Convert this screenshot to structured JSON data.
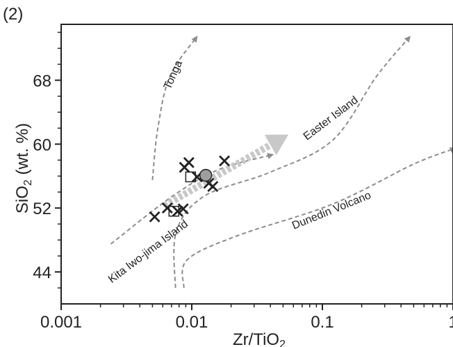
{
  "panel_label": "(2)",
  "chart_data": {
    "type": "scatter",
    "xlabel": "Zr/TiO",
    "xlabel_subscript": "2",
    "ylabel": "SiO",
    "ylabel_subscript": "2",
    "ylabel_unit": " (wt. %)",
    "x_scale": "log",
    "xlim": [
      0.001,
      1
    ],
    "ylim": [
      40,
      75
    ],
    "x_ticks": [
      {
        "value": 0.001,
        "label": "0.001"
      },
      {
        "value": 0.01,
        "label": "0.01"
      },
      {
        "value": 0.1,
        "label": "0.1"
      },
      {
        "value": 1,
        "label": "1"
      }
    ],
    "y_ticks": [
      {
        "value": 44,
        "label": "44"
      },
      {
        "value": 52,
        "label": "52"
      },
      {
        "value": 60,
        "label": "60"
      },
      {
        "value": 68,
        "label": "68"
      }
    ],
    "grid": false,
    "colors": {
      "axis": "#222222",
      "trend": "#8c8c8c",
      "thick_arrow": "#c8c8c8",
      "circle": "#9e9e9e"
    },
    "trends": [
      {
        "label": "Tonga",
        "points": [
          [
            0.005,
            55.5
          ],
          [
            0.0055,
            62
          ],
          [
            0.0068,
            68.5
          ],
          [
            0.011,
            73.5
          ]
        ]
      },
      {
        "label": "Kita Iwo-jima Island",
        "points": [
          [
            0.0024,
            47.5
          ],
          [
            0.007,
            53.4
          ],
          [
            0.016,
            56.8
          ],
          [
            0.042,
            58.7
          ]
        ]
      },
      {
        "label": "Easter Island",
        "points": [
          [
            0.0075,
            42
          ],
          [
            0.0076,
            49
          ],
          [
            0.0125,
            53.5
          ],
          [
            0.04,
            56.5
          ],
          [
            0.12,
            60.5
          ],
          [
            0.26,
            68.5
          ],
          [
            0.47,
            73.5
          ]
        ]
      },
      {
        "label": "Dunedin Volcano",
        "points": [
          [
            0.0087,
            42
          ],
          [
            0.0092,
            45.5
          ],
          [
            0.022,
            48.5
          ],
          [
            0.12,
            52.5
          ],
          [
            0.5,
            57.5
          ],
          [
            1.05,
            59.5
          ]
        ]
      }
    ],
    "thick_arrow": {
      "from": [
        0.0062,
        52.3
      ],
      "to": [
        0.055,
        61.2
      ]
    },
    "points": {
      "cross": [
        [
          0.0052,
          50.9
        ],
        [
          0.0065,
          52
        ],
        [
          0.0078,
          51.6
        ],
        [
          0.0086,
          51.9
        ],
        [
          0.0088,
          57.1
        ],
        [
          0.0095,
          57.7
        ],
        [
          0.011,
          55.9
        ],
        [
          0.0135,
          55.1
        ],
        [
          0.0145,
          54.7
        ],
        [
          0.0178,
          57.9
        ]
      ],
      "square": [
        [
          0.0073,
          51.6
        ],
        [
          0.0098,
          55.9
        ]
      ],
      "circle": [
        [
          0.0128,
          56.1
        ]
      ]
    }
  }
}
